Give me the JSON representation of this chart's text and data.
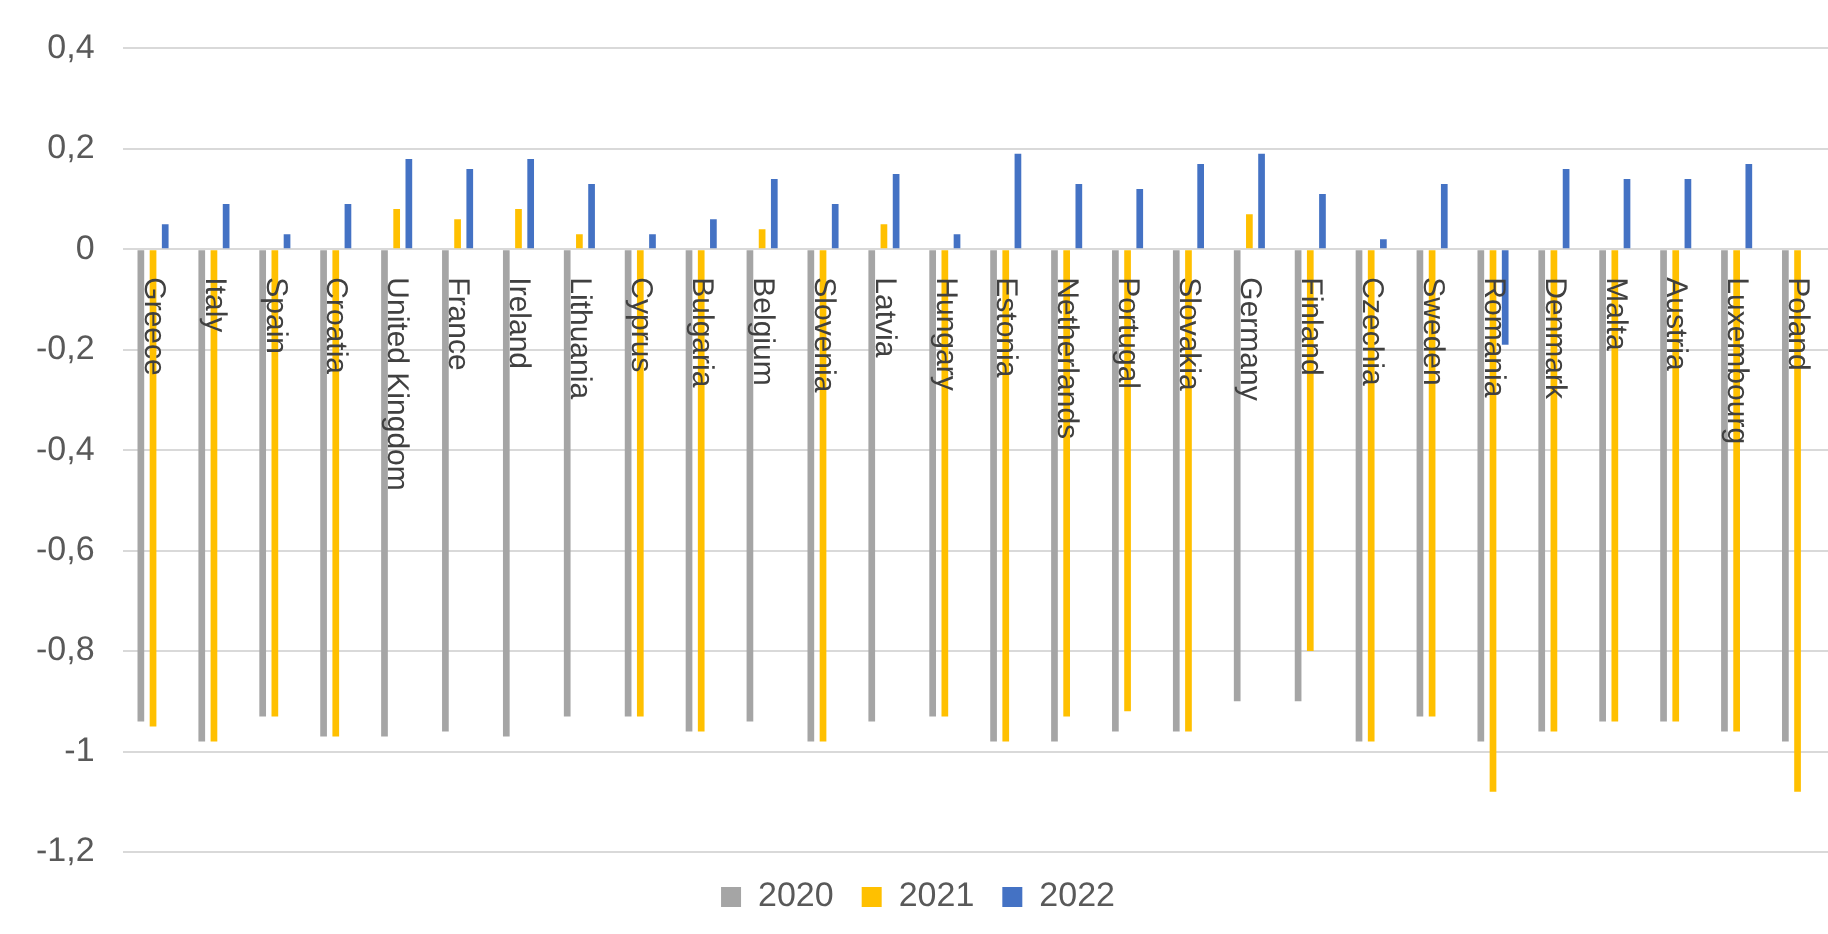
{
  "chart_data": {
    "type": "bar",
    "categories": [
      "Greece",
      "Italy",
      "Spain",
      "Croatia",
      "United Kingdom",
      "France",
      "Ireland",
      "Lithuania",
      "Cyprus",
      "Bulgaria",
      "Belgium",
      "Slovenia",
      "Latvia",
      "Hungary",
      "Estonia",
      "Netherlands",
      "Portugal",
      "Slovakia",
      "Germany",
      "Finland",
      "Czechia",
      "Sweden",
      "Romania",
      "Denmark",
      "Malta",
      "Austria",
      "Luxembourg",
      "Poland"
    ],
    "series": [
      {
        "name": "2020",
        "color": "#a5a5a5",
        "values": [
          -0.94,
          -0.98,
          -0.93,
          -0.97,
          -0.97,
          -0.96,
          -0.97,
          -0.93,
          -0.93,
          -0.96,
          -0.94,
          -0.98,
          -0.94,
          -0.93,
          -0.98,
          -0.98,
          -0.96,
          -0.96,
          -0.9,
          -0.9,
          -0.98,
          -0.93,
          -0.98,
          -0.96,
          -0.94,
          -0.94,
          -0.96,
          -0.98
        ]
      },
      {
        "name": "2021",
        "color": "#ffc000",
        "values": [
          -0.95,
          -0.98,
          -0.93,
          -0.97,
          0.08,
          0.06,
          0.08,
          0.03,
          -0.93,
          -0.96,
          0.04,
          -0.98,
          0.05,
          -0.93,
          -0.98,
          -0.93,
          -0.92,
          -0.96,
          0.07,
          -0.8,
          -0.98,
          -0.93,
          -1.08,
          -0.96,
          -0.94,
          -0.94,
          -0.96,
          -1.08
        ]
      },
      {
        "name": "2022",
        "color": "#4472c4",
        "values": [
          0.05,
          0.09,
          0.03,
          0.09,
          0.18,
          0.16,
          0.18,
          0.13,
          0.03,
          0.06,
          0.14,
          0.09,
          0.15,
          0.03,
          0.19,
          0.13,
          0.12,
          0.17,
          0.19,
          0.11,
          0.02,
          0.13,
          -0.19,
          0.16,
          0.14,
          0.14,
          0.17,
          null
        ]
      }
    ],
    "ylim": [
      -1.2,
      0.4
    ],
    "yticks": [
      {
        "value": -1.2,
        "label": "-1,2"
      },
      {
        "value": -1,
        "label": "-1"
      },
      {
        "value": -0.8,
        "label": "-0,8"
      },
      {
        "value": -0.6,
        "label": "-0,6"
      },
      {
        "value": -0.4,
        "label": "-0,4"
      },
      {
        "value": -0.2,
        "label": "-0,2"
      },
      {
        "value": 0,
        "label": "0"
      },
      {
        "value": 0.2,
        "label": "0,2"
      },
      {
        "value": 0.4,
        "label": "0,4"
      }
    ],
    "grid": "y",
    "legend": "bottom"
  }
}
